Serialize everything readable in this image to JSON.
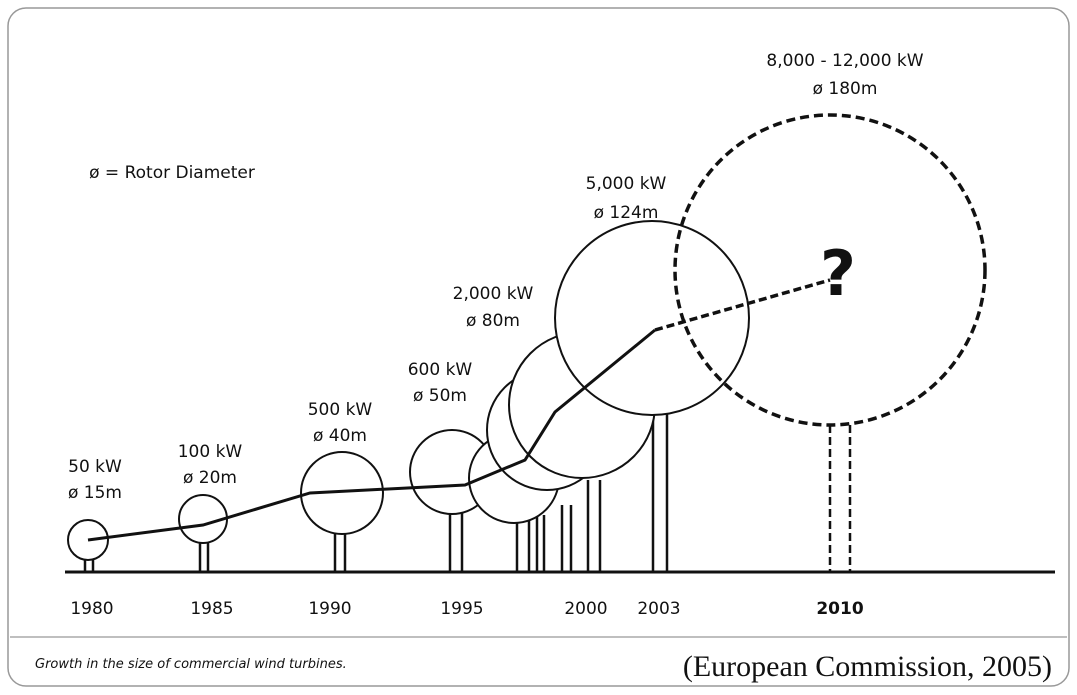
{
  "legend": "ø = Rotor Diameter",
  "turbines": [
    {
      "power": "50 kW",
      "diameter": "ø 15m"
    },
    {
      "power": "100 kW",
      "diameter": "ø 20m"
    },
    {
      "power": "500 kW",
      "diameter": "ø 40m"
    },
    {
      "power": "600 kW",
      "diameter": "ø 50m"
    },
    {
      "power": "2,000 kW",
      "diameter": "ø 80m"
    },
    {
      "power": "5,000 kW",
      "diameter": "ø 124m"
    },
    {
      "power": "8,000 - 12,000 kW",
      "diameter": "ø 180m"
    }
  ],
  "question": "?",
  "years": [
    "1980",
    "1985",
    "1990",
    "1995",
    "2000",
    "2003",
    "2010"
  ],
  "caption": "Growth in the size of commercial wind turbines.",
  "source": "(European Commission, 2005)"
}
